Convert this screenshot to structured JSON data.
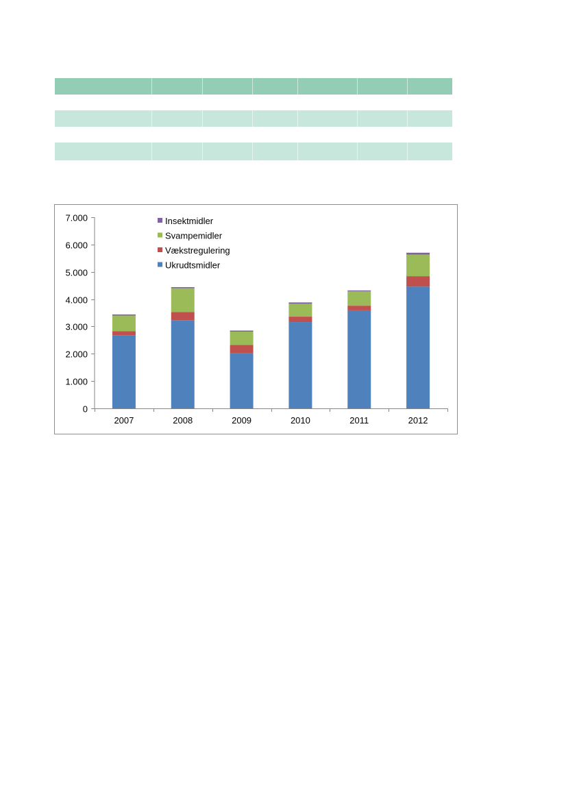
{
  "chart_data": {
    "type": "bar",
    "stacked": true,
    "title": "",
    "xlabel": "",
    "ylabel": "",
    "categories": [
      "2007",
      "2008",
      "2009",
      "2010",
      "2011",
      "2012"
    ],
    "ylim": [
      0,
      7000
    ],
    "yticks": [
      0,
      1000,
      2000,
      3000,
      4000,
      5000,
      6000,
      7000
    ],
    "ytick_labels": [
      "0",
      "1.000",
      "2.000",
      "3.000",
      "4.000",
      "5.000",
      "6.000",
      "7.000"
    ],
    "legend_position": "top-left",
    "grid": false,
    "series": [
      {
        "name": "Ukrudtsmidler",
        "color": "#4f81bd",
        "values": [
          2680,
          3230,
          2030,
          3160,
          3590,
          4460
        ]
      },
      {
        "name": "Vækstregulering",
        "color": "#c0504d",
        "values": [
          150,
          300,
          290,
          200,
          170,
          380
        ]
      },
      {
        "name": "Svampemidler",
        "color": "#9bbb59",
        "values": [
          570,
          870,
          490,
          470,
          530,
          790
        ]
      },
      {
        "name": "Insektmidler",
        "color": "#8064a2",
        "values": [
          40,
          40,
          40,
          50,
          30,
          70
        ]
      }
    ]
  }
}
